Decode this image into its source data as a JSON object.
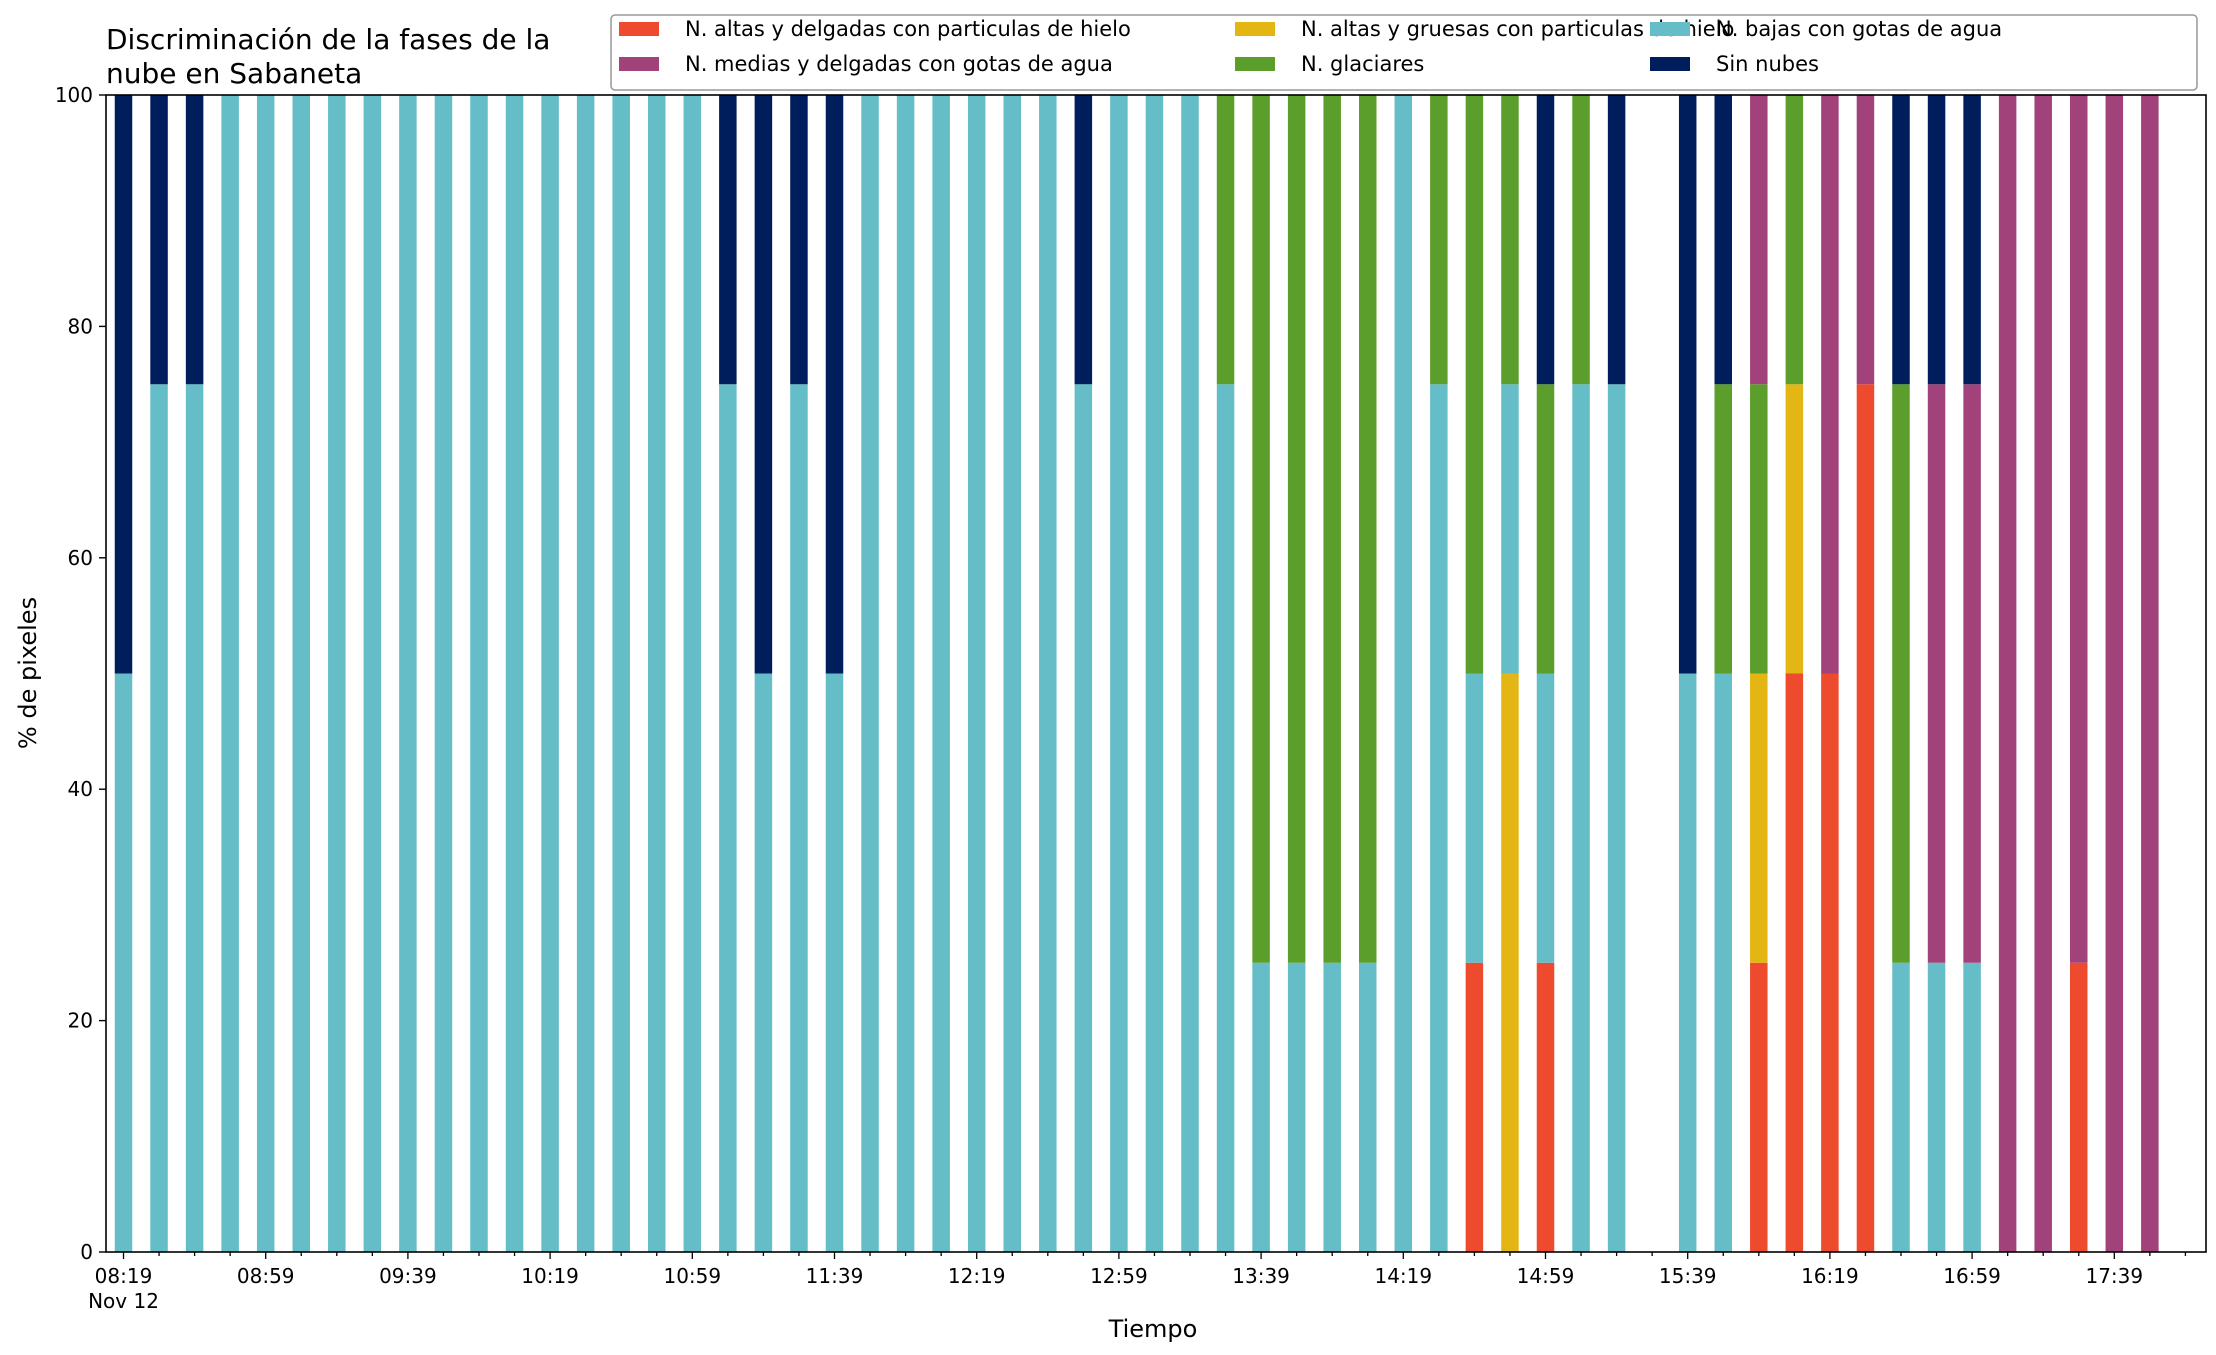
{
  "chart_data": {
    "type": "bar",
    "stacked": true,
    "title_lines": [
      "Discriminación de la fases de la",
      "nube en Sabaneta"
    ],
    "xlabel": "Tiempo",
    "ylabel": "% de pixeles",
    "ylim": [
      0,
      100
    ],
    "yticks": [
      0,
      20,
      40,
      60,
      80,
      100
    ],
    "x_interval_minutes": 10,
    "x_start": "08:19",
    "x_count": 59,
    "xtick_labels": [
      "08:19",
      "08:59",
      "09:39",
      "10:19",
      "10:59",
      "11:39",
      "12:19",
      "12:59",
      "13:39",
      "14:19",
      "14:59",
      "15:39",
      "16:19",
      "16:59",
      "17:39"
    ],
    "xtick_date": "Nov 12",
    "grid": false,
    "legend_position": "top-right",
    "legend_order": [
      "alt_del",
      "med_del",
      "alt_gru",
      "glac",
      "bajas",
      "sin"
    ],
    "series": [
      {
        "key": "alt_del",
        "name": "N. altas y delgadas con particulas de hielo",
        "color": "#ee4b2e"
      },
      {
        "key": "alt_gru",
        "name": "N. altas y gruesas con particulas de hielo",
        "color": "#e3b614"
      },
      {
        "key": "bajas",
        "name": "N. bajas con gotas de agua",
        "color": "#65bdc8"
      },
      {
        "key": "glac",
        "name": "N. glaciares",
        "color": "#5b9e2b"
      },
      {
        "key": "med_del",
        "name": "N. medias y delgadas con gotas de agua",
        "color": "#a1437a"
      },
      {
        "key": "sin",
        "name": "Sin nubes",
        "color": "#001e5c"
      }
    ],
    "bars": [
      {
        "time": "08:19",
        "bajas": 50,
        "sin": 50
      },
      {
        "time": "08:29",
        "bajas": 75,
        "sin": 25
      },
      {
        "time": "08:39",
        "bajas": 75,
        "sin": 25
      },
      {
        "time": "08:49",
        "bajas": 100
      },
      {
        "time": "08:59",
        "bajas": 100
      },
      {
        "time": "09:09",
        "bajas": 100
      },
      {
        "time": "09:19",
        "bajas": 100
      },
      {
        "time": "09:29",
        "bajas": 100
      },
      {
        "time": "09:39",
        "bajas": 100
      },
      {
        "time": "09:49",
        "bajas": 100
      },
      {
        "time": "09:59",
        "bajas": 100
      },
      {
        "time": "10:09",
        "bajas": 100
      },
      {
        "time": "10:19",
        "bajas": 100
      },
      {
        "time": "10:29",
        "bajas": 100
      },
      {
        "time": "10:39",
        "bajas": 100
      },
      {
        "time": "10:49",
        "bajas": 100
      },
      {
        "time": "10:59",
        "bajas": 100
      },
      {
        "time": "11:09",
        "bajas": 75,
        "sin": 25
      },
      {
        "time": "11:19",
        "bajas": 50,
        "sin": 50
      },
      {
        "time": "11:29",
        "bajas": 75,
        "sin": 25
      },
      {
        "time": "11:39",
        "bajas": 50,
        "sin": 50
      },
      {
        "time": "11:49",
        "bajas": 100
      },
      {
        "time": "11:59",
        "bajas": 100
      },
      {
        "time": "12:09",
        "bajas": 100
      },
      {
        "time": "12:19",
        "bajas": 100
      },
      {
        "time": "12:29",
        "bajas": 100
      },
      {
        "time": "12:39",
        "bajas": 100
      },
      {
        "time": "12:49",
        "bajas": 75,
        "sin": 25
      },
      {
        "time": "12:59",
        "bajas": 100
      },
      {
        "time": "13:09",
        "bajas": 100
      },
      {
        "time": "13:19",
        "bajas": 100
      },
      {
        "time": "13:29",
        "bajas": 75,
        "glac": 25
      },
      {
        "time": "13:39",
        "bajas": 25,
        "glac": 75
      },
      {
        "time": "13:49",
        "bajas": 25,
        "glac": 75
      },
      {
        "time": "13:59",
        "bajas": 25,
        "glac": 75
      },
      {
        "time": "14:09",
        "bajas": 25,
        "glac": 75
      },
      {
        "time": "14:19",
        "bajas": 100
      },
      {
        "time": "14:29",
        "bajas": 75,
        "glac": 25
      },
      {
        "time": "14:39",
        "alt_del": 25,
        "bajas": 25,
        "glac": 50
      },
      {
        "time": "14:49",
        "alt_gru": 50,
        "bajas": 25,
        "glac": 25
      },
      {
        "time": "14:59",
        "alt_del": 25,
        "bajas": 25,
        "glac": 25,
        "sin": 25
      },
      {
        "time": "15:09",
        "bajas": 75,
        "glac": 25
      },
      {
        "time": "15:19",
        "bajas": 75,
        "sin": 25
      },
      {
        "time": "15:29"
      },
      {
        "time": "15:39",
        "bajas": 50,
        "sin": 50
      },
      {
        "time": "15:49",
        "bajas": 50,
        "glac": 25,
        "sin": 25
      },
      {
        "time": "15:59",
        "alt_del": 25,
        "alt_gru": 25,
        "glac": 25,
        "med_del": 25
      },
      {
        "time": "16:09",
        "alt_del": 50,
        "alt_gru": 25,
        "glac": 25
      },
      {
        "time": "16:19",
        "alt_del": 50,
        "med_del": 50
      },
      {
        "time": "16:29",
        "alt_del": 75,
        "med_del": 25
      },
      {
        "time": "16:39",
        "bajas": 25,
        "glac": 50,
        "sin": 25
      },
      {
        "time": "16:49",
        "bajas": 25,
        "med_del": 50,
        "sin": 25
      },
      {
        "time": "16:59",
        "bajas": 25,
        "med_del": 50,
        "sin": 25
      },
      {
        "time": "17:09",
        "med_del": 100
      },
      {
        "time": "17:19",
        "med_del": 100
      },
      {
        "time": "17:29",
        "alt_del": 25,
        "med_del": 75
      },
      {
        "time": "17:39",
        "med_del": 100
      },
      {
        "time": "17:49",
        "med_del": 100
      },
      {
        "time": "17:59"
      }
    ]
  }
}
